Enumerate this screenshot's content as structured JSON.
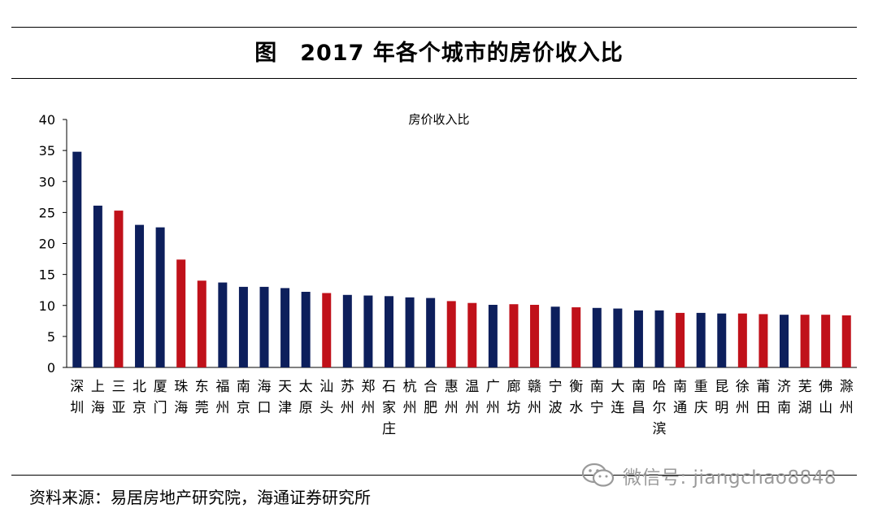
{
  "figure": {
    "label": "图",
    "title": "2017 年各个城市的房价收入比"
  },
  "chart_data": {
    "type": "bar",
    "title": "房价收入比",
    "xlabel": "",
    "ylabel": "",
    "ylim": [
      0,
      40
    ],
    "yticks": [
      0,
      5,
      10,
      15,
      20,
      25,
      30,
      35,
      40
    ],
    "grid": false,
    "legend": "none",
    "colors": {
      "navy": "#0d1f5c",
      "red": "#c0111a"
    },
    "categories": [
      "深圳",
      "上海",
      "三亚",
      "北京",
      "厦门",
      "珠海",
      "东莞",
      "福州",
      "南京",
      "海口",
      "天津",
      "太原",
      "汕头",
      "苏州",
      "郑州",
      "石家庄",
      "杭州",
      "合肥",
      "惠州",
      "温州",
      "广州",
      "廊坊",
      "赣州",
      "宁波",
      "衡水",
      "南宁",
      "大连",
      "南昌",
      "哈尔滨",
      "南通",
      "重庆",
      "昆明",
      "徐州",
      "莆田",
      "济南",
      "芜湖",
      "佛山",
      "滁州"
    ],
    "values": [
      34.8,
      26.1,
      25.3,
      23.0,
      22.6,
      17.4,
      14.0,
      13.7,
      13.0,
      13.0,
      12.8,
      12.2,
      12.0,
      11.7,
      11.6,
      11.5,
      11.3,
      11.2,
      10.7,
      10.4,
      10.1,
      10.2,
      10.1,
      9.8,
      9.7,
      9.6,
      9.5,
      9.2,
      9.2,
      8.8,
      8.8,
      8.7,
      8.7,
      8.6,
      8.5,
      8.5,
      8.5,
      8.4
    ],
    "bar_colors": [
      "navy",
      "navy",
      "red",
      "navy",
      "navy",
      "red",
      "red",
      "navy",
      "navy",
      "navy",
      "navy",
      "navy",
      "red",
      "navy",
      "navy",
      "navy",
      "navy",
      "navy",
      "red",
      "red",
      "navy",
      "red",
      "red",
      "navy",
      "red",
      "navy",
      "navy",
      "navy",
      "navy",
      "red",
      "navy",
      "navy",
      "red",
      "red",
      "navy",
      "red",
      "red",
      "red"
    ]
  },
  "source": {
    "text": "资料来源：易居房地产研究院，海通证券研究所"
  },
  "watermark": {
    "icon": "wechat-icon",
    "text": "微信号: jiangchao8848"
  }
}
